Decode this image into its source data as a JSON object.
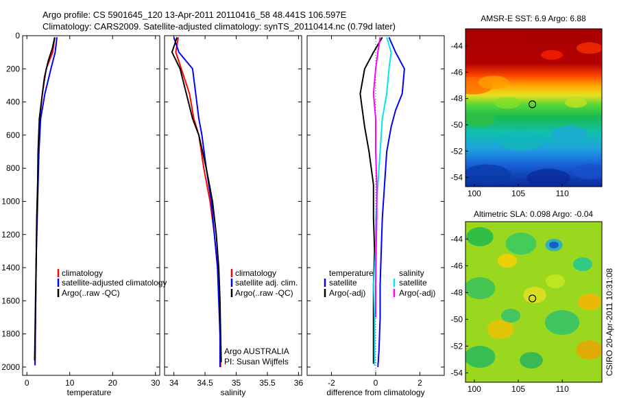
{
  "figure": {
    "title_line1": "Argo profile: CS 5901645_120 13-Apr-2011 20110416_58 48.441S 106.597E",
    "title_line2": "Climatology: CARS2009. Satellite-adjusted climatology: synTS_20110414.nc (0.79d later)",
    "credit": "CSIRO 20-Apr-2011 10:31:08"
  },
  "chart_data": [
    {
      "type": "line",
      "id": "temperature",
      "xlabel": "temperature",
      "ylabel": "",
      "xlim": [
        -1,
        31
      ],
      "ylim": [
        2050,
        0
      ],
      "xticks": [
        "0",
        "10",
        "20",
        "30"
      ],
      "yticks": [
        "0",
        "200",
        "400",
        "600",
        "800",
        "1000",
        "1200",
        "1400",
        "1600",
        "1800",
        "2000"
      ],
      "legend": [
        "climatology",
        "satellite-adjusted climatology",
        "Argo(..raw -QC)"
      ],
      "series": [
        {
          "name": "climatology",
          "color": "#ff0000",
          "x": [
            6.5,
            6.0,
            4.5,
            3.6,
            3.0,
            2.7,
            2.5,
            2.3,
            2.2,
            2.1,
            2.0,
            1.9
          ],
          "y": [
            10,
            100,
            200,
            350,
            500,
            700,
            900,
            1100,
            1300,
            1500,
            1700,
            1980
          ]
        },
        {
          "name": "satellite-adjusted climatology",
          "color": "#0000ff",
          "x": [
            7.0,
            6.6,
            5.6,
            4.2,
            3.2,
            2.8,
            2.6,
            2.4,
            2.2,
            2.1,
            2.0,
            1.9
          ],
          "y": [
            10,
            100,
            200,
            350,
            500,
            700,
            900,
            1100,
            1300,
            1500,
            1700,
            1990
          ]
        },
        {
          "name": "Argo(..raw -QC)",
          "color": "#000000",
          "x": [
            6.5,
            5.9,
            5.0,
            4.1,
            3.6,
            2.9,
            2.6,
            2.5,
            2.3,
            2.2,
            2.0,
            1.9,
            1.8
          ],
          "y": [
            10,
            80,
            150,
            250,
            350,
            500,
            700,
            900,
            1100,
            1300,
            1600,
            1800,
            1960
          ]
        }
      ]
    },
    {
      "type": "line",
      "id": "salinity",
      "xlabel": "salinity",
      "ylabel": "",
      "xlim": [
        33.85,
        36.05
      ],
      "ylim": [
        2050,
        0
      ],
      "xticks": [
        "34",
        "34.5",
        "35",
        "35.5",
        "36"
      ],
      "legend": [
        "climatology",
        "satellite adj. clim.",
        "Argo(..raw -QC)"
      ],
      "annotation_line1": "Argo AUSTRALIA",
      "annotation_line2": "PI: Susan Wijffels",
      "series": [
        {
          "name": "climatology",
          "color": "#ff0000",
          "x": [
            34.07,
            34.03,
            34.12,
            34.25,
            34.32,
            34.4,
            34.48,
            34.58,
            34.65,
            34.7,
            34.73,
            34.74,
            34.75
          ],
          "y": [
            10,
            100,
            200,
            350,
            500,
            600,
            800,
            1000,
            1200,
            1400,
            1600,
            1800,
            2000
          ]
        },
        {
          "name": "satellite adj. clim.",
          "color": "#0000ff",
          "x": [
            34.0,
            34.08,
            34.3,
            34.35,
            34.4,
            34.45,
            34.52,
            34.6,
            34.65,
            34.7,
            34.72,
            34.74,
            34.74
          ],
          "y": [
            10,
            100,
            200,
            350,
            500,
            600,
            800,
            1000,
            1200,
            1400,
            1600,
            1800,
            2000
          ]
        },
        {
          "name": "Argo(..raw -QC)",
          "color": "#000000",
          "x": [
            34.05,
            33.97,
            34.1,
            34.2,
            34.3,
            34.4,
            34.52,
            34.62,
            34.68,
            34.72,
            34.74,
            34.75,
            34.76
          ],
          "y": [
            10,
            100,
            200,
            350,
            500,
            600,
            800,
            1000,
            1200,
            1400,
            1600,
            1800,
            1970
          ]
        }
      ]
    },
    {
      "type": "line",
      "id": "difference",
      "xlabel": "difference from climatology",
      "ylabel": "",
      "xlim": [
        -3.1,
        3.1
      ],
      "ylim": [
        2050,
        0
      ],
      "xticks": [
        "-2",
        "0",
        "2"
      ],
      "legend_header_temperature": "temperature",
      "legend_header_salinity": "salinity",
      "legend": [
        "satellite",
        "Argo(-adj)",
        "satellite",
        "Argo(-adj)"
      ],
      "series": [
        {
          "name": "temperature satellite",
          "color": "#0000ff",
          "x": [
            0.6,
            0.9,
            1.3,
            1.2,
            0.9,
            0.7,
            0.5,
            0.4,
            0.3,
            0.25,
            0.2,
            0.2,
            0.15,
            0.1
          ],
          "y": [
            10,
            100,
            200,
            350,
            450,
            550,
            700,
            900,
            1100,
            1300,
            1500,
            1700,
            1900,
            2000
          ]
        },
        {
          "name": "temperature Argo(-adj)",
          "color": "#000000",
          "x": [
            0.3,
            -0.1,
            -0.5,
            -0.7,
            -0.6,
            -0.5,
            -0.3,
            -0.1,
            -0.1,
            -0.05,
            -0.1,
            -0.1,
            -0.1
          ],
          "y": [
            10,
            100,
            200,
            350,
            450,
            550,
            700,
            900,
            1100,
            1300,
            1500,
            1700,
            1980
          ]
        },
        {
          "name": "salinity satellite",
          "color": "#00e5ee",
          "x": [
            0.5,
            0.7,
            0.6,
            0.5,
            0.3,
            0.2,
            0.1,
            0.0,
            0.0,
            -0.1,
            -0.05,
            -0.05
          ],
          "y": [
            10,
            100,
            200,
            350,
            500,
            700,
            900,
            1100,
            1300,
            1500,
            1700,
            1990
          ]
        },
        {
          "name": "salinity Argo(-adj)",
          "color": "#ff00ff",
          "x": [
            0.2,
            0.1,
            0.0,
            -0.1,
            0.0,
            0.0,
            0.05,
            0.05,
            0.02,
            0.0,
            0.0
          ],
          "y": [
            10,
            100,
            200,
            350,
            500,
            700,
            900,
            1100,
            1300,
            1500,
            1700
          ]
        }
      ]
    },
    {
      "type": "heatmap",
      "id": "sst-map",
      "title": "AMSR-E SST: 6.9 Argo: 6.88",
      "xlim": [
        99,
        114.5
      ],
      "ylim": [
        -54.7,
        -42.7
      ],
      "xticks": [
        "100",
        "105",
        "110"
      ],
      "yticks": [
        "-44",
        "-46",
        "-48",
        "-50",
        "-52",
        "-54"
      ],
      "marker": {
        "lon": 106.6,
        "lat": -48.44
      }
    },
    {
      "type": "heatmap",
      "id": "sla-map",
      "title": "Altimetric SLA: 0.098 Argo: -0.04",
      "xlim": [
        99,
        114.5
      ],
      "ylim": [
        -54.7,
        -42.7
      ],
      "xticks": [
        "100",
        "105",
        "110"
      ],
      "yticks": [
        "-44",
        "-46",
        "-48",
        "-50",
        "-52",
        "-54"
      ],
      "marker": {
        "lon": 106.6,
        "lat": -48.44
      }
    }
  ]
}
